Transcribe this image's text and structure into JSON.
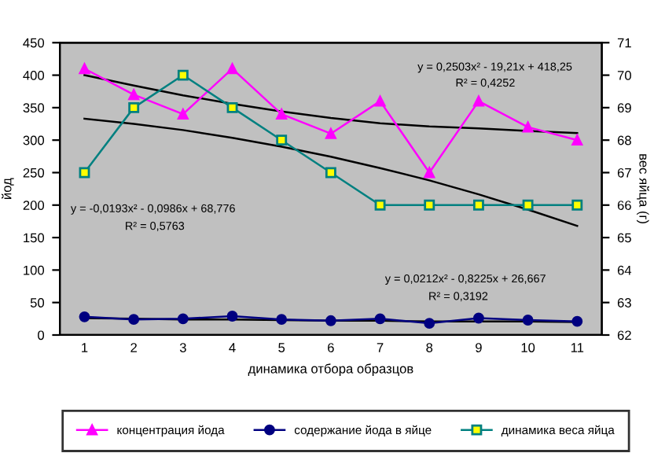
{
  "chart_data": {
    "type": "line",
    "xlabel": "динамика отбора образцов",
    "ylabel": "йод",
    "y2label": "вес яйца (г)",
    "categories": [
      "1",
      "2",
      "3",
      "4",
      "5",
      "6",
      "7",
      "8",
      "9",
      "10",
      "11"
    ],
    "ylim": [
      0,
      450
    ],
    "yticks": [
      0,
      50,
      100,
      150,
      200,
      250,
      300,
      350,
      400,
      450
    ],
    "y2lim": [
      62,
      71
    ],
    "y2ticks": [
      62,
      63,
      64,
      65,
      66,
      67,
      68,
      69,
      70,
      71
    ],
    "grid": false,
    "legend": "bottom",
    "series": [
      {
        "name": "концентрация йода",
        "color": "#ff00ff",
        "marker": "triangle",
        "values": [
          410,
          370,
          340,
          410,
          340,
          310,
          360,
          250,
          360,
          320,
          300
        ]
      },
      {
        "name": "содержание йода в яйце",
        "color": "#000080",
        "marker": "circle",
        "values": [
          28,
          24,
          25,
          29,
          24,
          22,
          25,
          18,
          26,
          23,
          21
        ]
      },
      {
        "name": "динамика веса яйца",
        "color": "#008080",
        "marker": "square",
        "axis": "y2",
        "values": [
          67,
          69,
          70,
          69,
          68,
          67,
          66,
          66,
          66,
          66,
          66
        ]
      },
      {
        "type": "line",
        "color": "#000000",
        "marker": "none",
        "values": [
          400,
          384,
          369,
          356,
          344,
          334,
          326,
          321,
          318,
          314,
          311
        ]
      },
      {
        "type": "line",
        "color": "#000000",
        "marker": "none",
        "axis": "y2",
        "values": [
          68.66,
          68.5,
          68.31,
          68.07,
          67.8,
          67.49,
          67.14,
          66.76,
          66.33,
          65.86,
          65.36
        ]
      },
      {
        "type": "line",
        "color": "#000000",
        "marker": "none",
        "values": [
          26,
          25,
          24,
          24,
          23,
          22,
          22,
          21,
          21,
          21,
          20
        ]
      }
    ],
    "annotations": [
      "y = 0,2503x² - 19,21x + 418,25",
      "R² = 0,4252",
      "y = -0,0193x² - 0,0986x + 68,776",
      "R² = 0,5763",
      "y = 0,0212x² - 0,8225x + 26,667",
      "R² = 0,3192"
    ]
  }
}
